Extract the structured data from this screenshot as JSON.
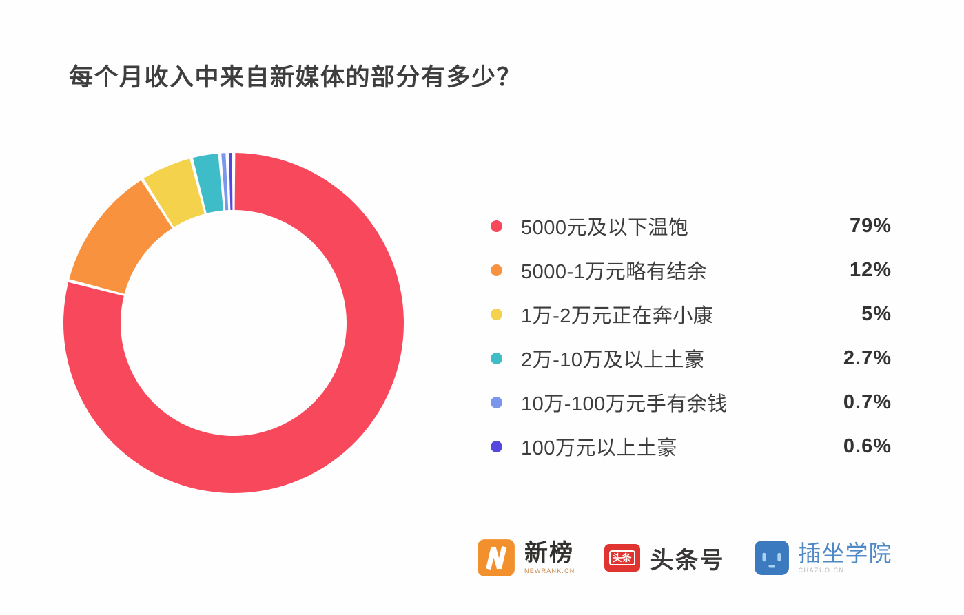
{
  "title": "每个月收入中来自新媒体的部分有多少？",
  "chart_data": {
    "type": "pie",
    "subtype": "donut",
    "title": "每个月收入中来自新媒体的部分有多少？",
    "legend_position": "right",
    "start_angle_deg": 0,
    "direction": "clockwise",
    "inner_radius_ratio": 0.66,
    "slices": [
      {
        "label": "5000元及以下温饱",
        "value": 79,
        "percent_label": "79%",
        "color": "#f8485c"
      },
      {
        "label": "5000-1万元略有结余",
        "value": 12,
        "percent_label": "12%",
        "color": "#f9923e"
      },
      {
        "label": "1万-2万元正在奔小康",
        "value": 5,
        "percent_label": "5%",
        "color": "#f5d24b"
      },
      {
        "label": "2万-10万及以上土豪",
        "value": 2.7,
        "percent_label": "2.7%",
        "color": "#3ebcc8"
      },
      {
        "label": "10万-100万元手有余钱",
        "value": 0.7,
        "percent_label": "0.7%",
        "color": "#7a97ed"
      },
      {
        "label": "100万元以上土豪",
        "value": 0.6,
        "percent_label": "0.6%",
        "color": "#5448de"
      }
    ]
  },
  "logos": [
    {
      "name": "newrank",
      "icon": "newrank-lightning-icon",
      "label": "新榜",
      "sublabel": "NEWRANK.CN"
    },
    {
      "name": "toutiao",
      "icon": "toutiao-badge-icon",
      "icon_text": "头条",
      "label": "头条号"
    },
    {
      "name": "chazuo",
      "icon": "chazuo-robot-icon",
      "label": "插坐学院",
      "sublabel": "CHAZUO.CN"
    }
  ],
  "colors": {
    "background": "#fefefe",
    "title_text": "#3e3e3e",
    "legend_text": "#3d3d3d",
    "percent_text": "#333333",
    "newrank_orange": "#f2902e",
    "toutiao_red": "#df3430",
    "chazuo_blue": "#3b7abf",
    "chazuo_face_light": "#a9d2f2"
  }
}
